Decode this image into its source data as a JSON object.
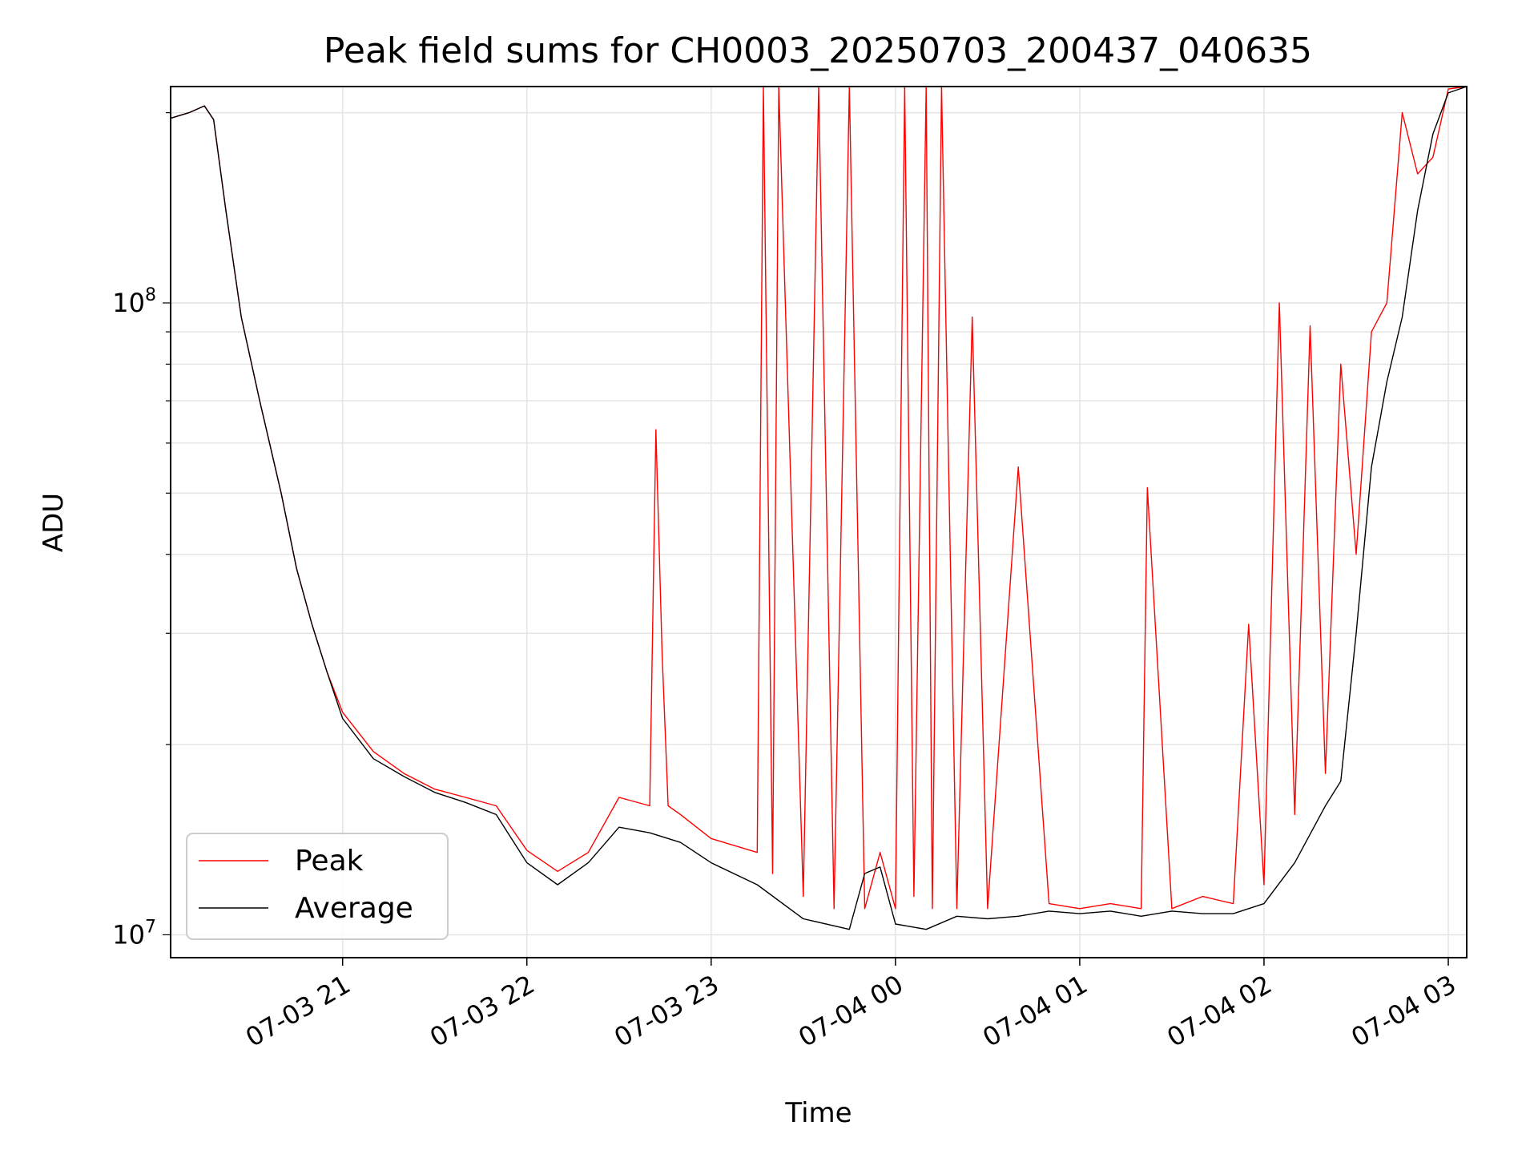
{
  "chart_data": {
    "type": "line",
    "title": "Peak field sums for CH0003_20250703_200437_040635",
    "xlabel": "Time",
    "ylabel": "ADU",
    "yscale": "log",
    "ylim": [
      9200000,
      220000000
    ],
    "xlim": [
      "07-03 20:04",
      "07-04 03:06"
    ],
    "grid": true,
    "legend_position": "lower-left",
    "x_ticks": [
      {
        "value": "07-03 21:00",
        "label": "07-03 21"
      },
      {
        "value": "07-03 22:00",
        "label": "07-03 22"
      },
      {
        "value": "07-03 23:00",
        "label": "07-03 23"
      },
      {
        "value": "07-04 00:00",
        "label": "07-04 00"
      },
      {
        "value": "07-04 01:00",
        "label": "07-04 01"
      },
      {
        "value": "07-04 02:00",
        "label": "07-04 02"
      },
      {
        "value": "07-04 03:00",
        "label": "07-04 03"
      }
    ],
    "y_ticks": [
      {
        "value": 10000000,
        "base": "10",
        "exp": "7"
      },
      {
        "value": 100000000,
        "base": "10",
        "exp": "8"
      }
    ],
    "series": [
      {
        "name": "Peak",
        "color": "#ff0000",
        "x": [
          "07-03 20:04",
          "07-03 20:10",
          "07-03 20:15",
          "07-03 20:18",
          "07-03 20:22",
          "07-03 20:27",
          "07-03 20:33",
          "07-03 20:40",
          "07-03 20:45",
          "07-03 20:50",
          "07-03 20:55",
          "07-03 21:00",
          "07-03 21:10",
          "07-03 21:20",
          "07-03 21:30",
          "07-03 21:40",
          "07-03 21:50",
          "07-03 22:00",
          "07-03 22:10",
          "07-03 22:20",
          "07-03 22:30",
          "07-03 22:40",
          "07-03 22:42",
          "07-03 22:44",
          "07-03 22:46",
          "07-03 22:50",
          "07-03 23:00",
          "07-03 23:15",
          "07-03 23:17",
          "07-03 23:20",
          "07-03 23:22",
          "07-03 23:30",
          "07-03 23:35",
          "07-03 23:40",
          "07-03 23:45",
          "07-03 23:50",
          "07-03 23:55",
          "07-04 00:00",
          "07-04 00:03",
          "07-04 00:06",
          "07-04 00:10",
          "07-04 00:12",
          "07-04 00:15",
          "07-04 00:20",
          "07-04 00:25",
          "07-04 00:30",
          "07-04 00:40",
          "07-04 00:50",
          "07-04 01:00",
          "07-04 01:10",
          "07-04 01:20",
          "07-04 01:22",
          "07-04 01:30",
          "07-04 01:40",
          "07-04 01:50",
          "07-04 01:55",
          "07-04 02:00",
          "07-04 02:05",
          "07-04 02:10",
          "07-04 02:15",
          "07-04 02:20",
          "07-04 02:25",
          "07-04 02:30",
          "07-04 02:35",
          "07-04 02:40",
          "07-04 02:45",
          "07-04 02:50",
          "07-04 02:55",
          "07-04 03:00",
          "07-04 03:06"
        ],
        "values": [
          196000000,
          200000000,
          205000000,
          195000000,
          140000000,
          95000000,
          70000000,
          50000000,
          38000000,
          31000000,
          26000000,
          22500000,
          19500000,
          18000000,
          17000000,
          16500000,
          16000000,
          13600000,
          12600000,
          13500000,
          16500000,
          16000000,
          63000000,
          28000000,
          16000000,
          15500000,
          14200000,
          13500000,
          220000000,
          12500000,
          220000000,
          11500000,
          220000000,
          11000000,
          220000000,
          11000000,
          13500000,
          11000000,
          220000000,
          11500000,
          220000000,
          11000000,
          220000000,
          11000000,
          95000000,
          11000000,
          55000000,
          11200000,
          11000000,
          11200000,
          11000000,
          51000000,
          11000000,
          11500000,
          11200000,
          31000000,
          12000000,
          100000000,
          15500000,
          92000000,
          18000000,
          80000000,
          40000000,
          90000000,
          100000000,
          200000000,
          160000000,
          170000000,
          218000000,
          220000000
        ]
      },
      {
        "name": "Average",
        "color": "#000000",
        "x": [
          "07-03 20:04",
          "07-03 20:10",
          "07-03 20:15",
          "07-03 20:18",
          "07-03 20:22",
          "07-03 20:27",
          "07-03 20:33",
          "07-03 20:40",
          "07-03 20:45",
          "07-03 20:50",
          "07-03 20:55",
          "07-03 21:00",
          "07-03 21:10",
          "07-03 21:20",
          "07-03 21:30",
          "07-03 21:40",
          "07-03 21:50",
          "07-03 22:00",
          "07-03 22:10",
          "07-03 22:20",
          "07-03 22:30",
          "07-03 22:40",
          "07-03 22:50",
          "07-03 23:00",
          "07-03 23:15",
          "07-03 23:30",
          "07-03 23:45",
          "07-03 23:50",
          "07-03 23:55",
          "07-04 00:00",
          "07-04 00:10",
          "07-04 00:20",
          "07-04 00:30",
          "07-04 00:40",
          "07-04 00:50",
          "07-04 01:00",
          "07-04 01:10",
          "07-04 01:20",
          "07-04 01:30",
          "07-04 01:40",
          "07-04 01:50",
          "07-04 02:00",
          "07-04 02:10",
          "07-04 02:20",
          "07-04 02:25",
          "07-04 02:30",
          "07-04 02:35",
          "07-04 02:40",
          "07-04 02:45",
          "07-04 02:50",
          "07-04 02:55",
          "07-04 03:00",
          "07-04 03:06"
        ],
        "values": [
          196000000,
          200000000,
          205000000,
          195000000,
          140000000,
          95000000,
          70000000,
          50000000,
          38000000,
          31000000,
          26000000,
          22000000,
          19000000,
          17800000,
          16800000,
          16200000,
          15500000,
          13000000,
          12000000,
          13000000,
          14800000,
          14500000,
          14000000,
          13000000,
          12000000,
          10600000,
          10200000,
          12500000,
          12800000,
          10400000,
          10200000,
          10700000,
          10600000,
          10700000,
          10900000,
          10800000,
          10900000,
          10700000,
          10900000,
          10800000,
          10800000,
          11200000,
          13000000,
          16000000,
          17500000,
          30000000,
          55000000,
          75000000,
          95000000,
          140000000,
          185000000,
          215000000,
          220000000
        ]
      }
    ]
  }
}
